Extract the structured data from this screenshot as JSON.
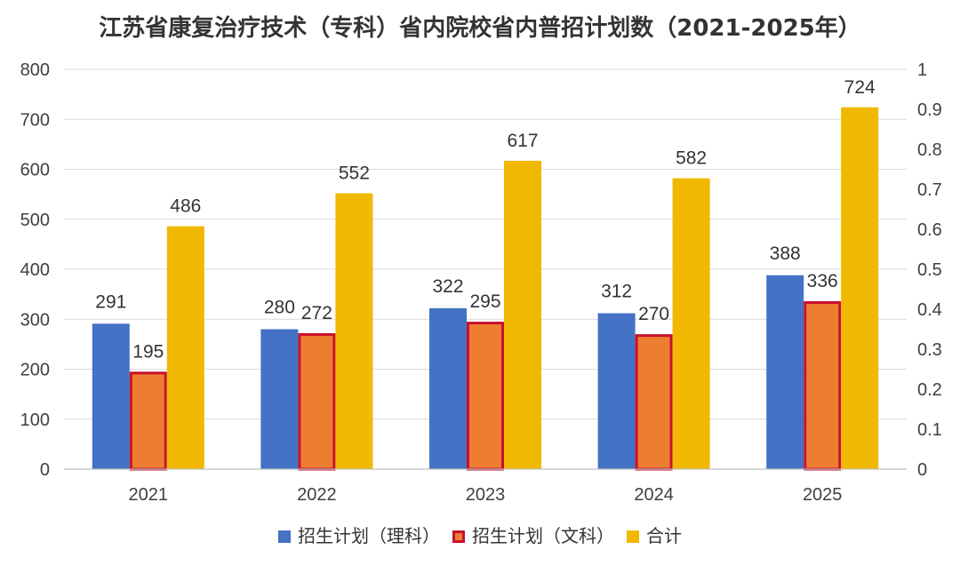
{
  "chart_data": {
    "type": "bar",
    "title": "江苏省康复治疗技术（专科）省内院校省内普招计划数（2021-2025年）",
    "categories": [
      "2021",
      "2022",
      "2023",
      "2024",
      "2025"
    ],
    "series": [
      {
        "name": "招生计划（理科）",
        "values": [
          291,
          280,
          322,
          312,
          388
        ],
        "color": "#4472C4",
        "stroke": "#4472C4"
      },
      {
        "name": "招生计划（文科）",
        "values": [
          195,
          272,
          295,
          270,
          336
        ],
        "color": "#ED7D31",
        "stroke": "#C8102E"
      },
      {
        "name": "合计",
        "values": [
          486,
          552,
          617,
          582,
          724
        ],
        "color": "#F0B800",
        "stroke": "#F0B800"
      }
    ],
    "ylim": [
      0,
      800
    ],
    "yticks": [
      "0",
      "100",
      "200",
      "300",
      "400",
      "500",
      "600",
      "700",
      "800"
    ],
    "y2lim": [
      0,
      1
    ],
    "y2ticks": [
      "0",
      "0.1",
      "0.2",
      "0.3",
      "0.4",
      "0.5",
      "0.6",
      "0.7",
      "0.8",
      "0.9",
      "1"
    ],
    "grid": true,
    "legend": "bottom"
  }
}
